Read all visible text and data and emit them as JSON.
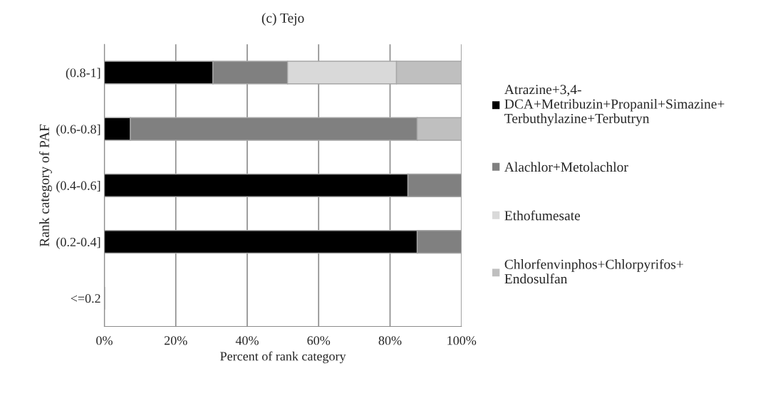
{
  "chart_data": {
    "type": "bar",
    "orientation": "horizontal",
    "stacked": true,
    "title": "(c) Tejo",
    "xlabel": "Percent of rank category",
    "ylabel": "Rank category of PAF",
    "categories": [
      "(0.8-1]",
      "(0.6-0.8]",
      "(0.4-0.6]",
      "(0.2-0.4]",
      "<=0.2"
    ],
    "series": [
      {
        "name": "Atrazine+3,4-\nDCA+Metribuzin+Propanil+Simazine+\nTerbuthylazine+Terbutryn",
        "color": "#000000",
        "values": [
          30.4,
          7.3,
          85.0,
          87.6,
          null
        ]
      },
      {
        "name": "Alachlor+Metolachlor",
        "color": "#808080",
        "values": [
          20.9,
          80.3,
          15.0,
          12.4,
          null
        ]
      },
      {
        "name": "Ethofumesate",
        "color": "#d9d9d9",
        "values": [
          30.5,
          null,
          null,
          null,
          null
        ]
      },
      {
        "name": "Chlorfenvinphos+Chlorpyrifos+\nEndosulfan",
        "color": "#bfbfbf",
        "values": [
          18.2,
          12.4,
          null,
          null,
          null
        ]
      }
    ],
    "xlim": [
      0,
      100
    ],
    "xticks": [
      {
        "value": 0,
        "label": "0%"
      },
      {
        "value": 20,
        "label": "20%"
      },
      {
        "value": 40,
        "label": "40%"
      },
      {
        "value": 60,
        "label": "60%"
      },
      {
        "value": 80,
        "label": "80%"
      },
      {
        "value": 100,
        "label": "100%"
      }
    ],
    "grid": "x",
    "legend": "right"
  }
}
